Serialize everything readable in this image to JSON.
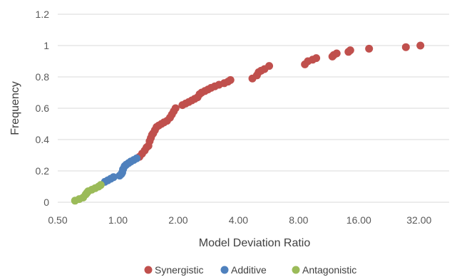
{
  "chart_data": {
    "type": "scatter",
    "title": "",
    "xlabel": "Model Deviation Ratio",
    "ylabel": "Frequency",
    "x_scale": "log2",
    "xlim": [
      0.5,
      45.25
    ],
    "ylim": [
      0,
      1.2
    ],
    "grid": "horizontal",
    "legend_position": "bottom",
    "x_ticks": [
      {
        "value": 0.5,
        "label": "0.50"
      },
      {
        "value": 1,
        "label": "1.00"
      },
      {
        "value": 2,
        "label": "2.00"
      },
      {
        "value": 4,
        "label": "4.00"
      },
      {
        "value": 8,
        "label": "8.00"
      },
      {
        "value": 16,
        "label": "16.00"
      },
      {
        "value": 32,
        "label": "32.00"
      }
    ],
    "y_ticks": [
      {
        "value": 0,
        "label": "0"
      },
      {
        "value": 0.2,
        "label": "0.2"
      },
      {
        "value": 0.4,
        "label": "0.4"
      },
      {
        "value": 0.6,
        "label": "0.6"
      },
      {
        "value": 0.8,
        "label": "0.8"
      },
      {
        "value": 1,
        "label": "1"
      },
      {
        "value": 1.2,
        "label": "1.2"
      }
    ],
    "series": [
      {
        "name": "Synergistic",
        "color": "#C0504D",
        "points": [
          [
            1.28,
            0.29
          ],
          [
            1.32,
            0.31
          ],
          [
            1.36,
            0.33
          ],
          [
            1.39,
            0.35
          ],
          [
            1.42,
            0.36
          ],
          [
            1.44,
            0.39
          ],
          [
            1.46,
            0.41
          ],
          [
            1.48,
            0.43
          ],
          [
            1.5,
            0.44
          ],
          [
            1.53,
            0.46
          ],
          [
            1.56,
            0.48
          ],
          [
            1.6,
            0.49
          ],
          [
            1.65,
            0.5
          ],
          [
            1.7,
            0.51
          ],
          [
            1.76,
            0.52
          ],
          [
            1.82,
            0.54
          ],
          [
            1.86,
            0.56
          ],
          [
            1.9,
            0.58
          ],
          [
            1.94,
            0.6
          ],
          [
            2.1,
            0.62
          ],
          [
            2.18,
            0.63
          ],
          [
            2.26,
            0.64
          ],
          [
            2.34,
            0.65
          ],
          [
            2.42,
            0.66
          ],
          [
            2.5,
            0.67
          ],
          [
            2.56,
            0.69
          ],
          [
            2.62,
            0.7
          ],
          [
            2.72,
            0.71
          ],
          [
            2.82,
            0.72
          ],
          [
            2.92,
            0.73
          ],
          [
            3.05,
            0.74
          ],
          [
            3.2,
            0.75
          ],
          [
            3.4,
            0.76
          ],
          [
            3.55,
            0.77
          ],
          [
            3.65,
            0.78
          ],
          [
            4.7,
            0.79
          ],
          [
            4.95,
            0.81
          ],
          [
            5.05,
            0.83
          ],
          [
            5.2,
            0.84
          ],
          [
            5.4,
            0.85
          ],
          [
            5.7,
            0.87
          ],
          [
            8.6,
            0.88
          ],
          [
            8.9,
            0.9
          ],
          [
            9.4,
            0.91
          ],
          [
            9.8,
            0.92
          ],
          [
            11.8,
            0.93
          ],
          [
            12.0,
            0.94
          ],
          [
            12.4,
            0.95
          ],
          [
            14.2,
            0.96
          ],
          [
            14.5,
            0.97
          ],
          [
            18.0,
            0.98
          ],
          [
            27.5,
            0.99
          ],
          [
            32.5,
            1.0
          ]
        ]
      },
      {
        "name": "Additive",
        "color": "#4F81BD",
        "points": [
          [
            0.86,
            0.13
          ],
          [
            0.89,
            0.14
          ],
          [
            0.92,
            0.15
          ],
          [
            0.95,
            0.16
          ],
          [
            1.02,
            0.17
          ],
          [
            1.04,
            0.18
          ],
          [
            1.05,
            0.19
          ],
          [
            1.06,
            0.21
          ],
          [
            1.08,
            0.23
          ],
          [
            1.1,
            0.24
          ],
          [
            1.13,
            0.25
          ],
          [
            1.16,
            0.26
          ],
          [
            1.2,
            0.27
          ],
          [
            1.24,
            0.28
          ]
        ]
      },
      {
        "name": "Antagonistic",
        "color": "#9BBB59",
        "points": [
          [
            0.61,
            0.01
          ],
          [
            0.64,
            0.02
          ],
          [
            0.67,
            0.03
          ],
          [
            0.69,
            0.05
          ],
          [
            0.7,
            0.06
          ],
          [
            0.71,
            0.07
          ],
          [
            0.74,
            0.08
          ],
          [
            0.77,
            0.09
          ],
          [
            0.8,
            0.1
          ],
          [
            0.82,
            0.11
          ]
        ]
      }
    ]
  }
}
